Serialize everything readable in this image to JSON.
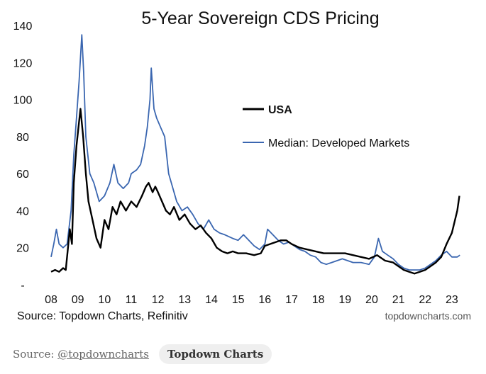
{
  "chart_data": {
    "type": "line",
    "title": "5-Year Sovereign CDS Pricing",
    "xlabel": "",
    "ylabel": "",
    "x_range": [
      2008.0,
      2023.4
    ],
    "x_ticks": [
      2008,
      2009,
      2010,
      2011,
      2012,
      2013,
      2014,
      2015,
      2016,
      2017,
      2018,
      2019,
      2020,
      2021,
      2022,
      2023
    ],
    "x_tick_labels": [
      "08",
      "09",
      "10",
      "11",
      "12",
      "13",
      "14",
      "15",
      "16",
      "17",
      "18",
      "19",
      "20",
      "21",
      "22",
      "23"
    ],
    "ylim": [
      0,
      140
    ],
    "y_ticks": [
      0,
      20,
      40,
      60,
      80,
      100,
      120,
      140
    ],
    "y_tick_labels": [
      "-",
      "20",
      "40",
      "60",
      "80",
      "100",
      "120",
      "140"
    ],
    "grid": false,
    "legend_position": "upper-center",
    "series": [
      {
        "name": "USA",
        "color": "#000000",
        "points": [
          [
            2008.0,
            7
          ],
          [
            2008.15,
            8
          ],
          [
            2008.3,
            7
          ],
          [
            2008.45,
            9
          ],
          [
            2008.55,
            8
          ],
          [
            2008.7,
            30
          ],
          [
            2008.78,
            22
          ],
          [
            2008.85,
            55
          ],
          [
            2008.95,
            75
          ],
          [
            2009.1,
            95
          ],
          [
            2009.2,
            80
          ],
          [
            2009.3,
            60
          ],
          [
            2009.4,
            45
          ],
          [
            2009.55,
            35
          ],
          [
            2009.7,
            25
          ],
          [
            2009.85,
            20
          ],
          [
            2010.0,
            35
          ],
          [
            2010.15,
            30
          ],
          [
            2010.3,
            42
          ],
          [
            2010.45,
            38
          ],
          [
            2010.6,
            45
          ],
          [
            2010.8,
            40
          ],
          [
            2011.0,
            45
          ],
          [
            2011.2,
            42
          ],
          [
            2011.4,
            48
          ],
          [
            2011.55,
            53
          ],
          [
            2011.65,
            55
          ],
          [
            2011.8,
            50
          ],
          [
            2011.9,
            53
          ],
          [
            2012.0,
            50
          ],
          [
            2012.15,
            45
          ],
          [
            2012.3,
            40
          ],
          [
            2012.45,
            38
          ],
          [
            2012.6,
            42
          ],
          [
            2012.8,
            35
          ],
          [
            2013.0,
            38
          ],
          [
            2013.2,
            33
          ],
          [
            2013.4,
            30
          ],
          [
            2013.6,
            32
          ],
          [
            2013.8,
            28
          ],
          [
            2014.0,
            25
          ],
          [
            2014.2,
            20
          ],
          [
            2014.4,
            18
          ],
          [
            2014.6,
            17
          ],
          [
            2014.8,
            18
          ],
          [
            2015.0,
            17
          ],
          [
            2015.3,
            17
          ],
          [
            2015.6,
            16
          ],
          [
            2015.85,
            17
          ],
          [
            2016.0,
            21
          ],
          [
            2016.2,
            22
          ],
          [
            2016.4,
            23
          ],
          [
            2016.6,
            24
          ],
          [
            2016.8,
            24
          ],
          [
            2017.0,
            22
          ],
          [
            2017.3,
            20
          ],
          [
            2017.6,
            19
          ],
          [
            2017.9,
            18
          ],
          [
            2018.2,
            17
          ],
          [
            2018.5,
            17
          ],
          [
            2018.8,
            17
          ],
          [
            2019.0,
            17
          ],
          [
            2019.3,
            16
          ],
          [
            2019.6,
            15
          ],
          [
            2019.9,
            14
          ],
          [
            2020.2,
            16
          ],
          [
            2020.5,
            13
          ],
          [
            2020.8,
            12
          ],
          [
            2021.0,
            10
          ],
          [
            2021.2,
            8
          ],
          [
            2021.4,
            7
          ],
          [
            2021.6,
            6
          ],
          [
            2021.8,
            7
          ],
          [
            2022.0,
            8
          ],
          [
            2022.2,
            10
          ],
          [
            2022.4,
            12
          ],
          [
            2022.6,
            15
          ],
          [
            2022.8,
            22
          ],
          [
            2023.0,
            28
          ],
          [
            2023.2,
            40
          ],
          [
            2023.28,
            48
          ]
        ]
      },
      {
        "name": "Median: Developed Markets",
        "color": "#3a66b0",
        "points": [
          [
            2008.0,
            15
          ],
          [
            2008.1,
            22
          ],
          [
            2008.2,
            30
          ],
          [
            2008.3,
            22
          ],
          [
            2008.45,
            20
          ],
          [
            2008.6,
            22
          ],
          [
            2008.75,
            40
          ],
          [
            2008.85,
            70
          ],
          [
            2008.95,
            90
          ],
          [
            2009.05,
            110
          ],
          [
            2009.15,
            135
          ],
          [
            2009.22,
            115
          ],
          [
            2009.3,
            80
          ],
          [
            2009.45,
            60
          ],
          [
            2009.6,
            55
          ],
          [
            2009.8,
            45
          ],
          [
            2010.0,
            48
          ],
          [
            2010.2,
            55
          ],
          [
            2010.35,
            65
          ],
          [
            2010.5,
            55
          ],
          [
            2010.7,
            52
          ],
          [
            2010.9,
            55
          ],
          [
            2011.0,
            60
          ],
          [
            2011.2,
            62
          ],
          [
            2011.35,
            65
          ],
          [
            2011.5,
            75
          ],
          [
            2011.6,
            85
          ],
          [
            2011.7,
            100
          ],
          [
            2011.75,
            117
          ],
          [
            2011.85,
            95
          ],
          [
            2011.95,
            90
          ],
          [
            2012.1,
            85
          ],
          [
            2012.25,
            80
          ],
          [
            2012.4,
            60
          ],
          [
            2012.5,
            55
          ],
          [
            2012.7,
            45
          ],
          [
            2012.9,
            40
          ],
          [
            2013.1,
            42
          ],
          [
            2013.3,
            38
          ],
          [
            2013.5,
            33
          ],
          [
            2013.7,
            30
          ],
          [
            2013.9,
            35
          ],
          [
            2014.1,
            30
          ],
          [
            2014.3,
            28
          ],
          [
            2014.5,
            27
          ],
          [
            2014.8,
            25
          ],
          [
            2015.0,
            24
          ],
          [
            2015.2,
            27
          ],
          [
            2015.4,
            24
          ],
          [
            2015.6,
            21
          ],
          [
            2015.8,
            19
          ],
          [
            2016.0,
            22
          ],
          [
            2016.1,
            30
          ],
          [
            2016.3,
            27
          ],
          [
            2016.5,
            24
          ],
          [
            2016.7,
            22
          ],
          [
            2016.9,
            23
          ],
          [
            2017.1,
            21
          ],
          [
            2017.3,
            19
          ],
          [
            2017.5,
            18
          ],
          [
            2017.7,
            16
          ],
          [
            2017.9,
            15
          ],
          [
            2018.1,
            12
          ],
          [
            2018.3,
            11
          ],
          [
            2018.5,
            12
          ],
          [
            2018.7,
            13
          ],
          [
            2018.9,
            14
          ],
          [
            2019.1,
            13
          ],
          [
            2019.3,
            12
          ],
          [
            2019.6,
            12
          ],
          [
            2019.9,
            11
          ],
          [
            2020.1,
            15
          ],
          [
            2020.25,
            25
          ],
          [
            2020.4,
            18
          ],
          [
            2020.6,
            16
          ],
          [
            2020.8,
            14
          ],
          [
            2021.0,
            11
          ],
          [
            2021.2,
            9
          ],
          [
            2021.4,
            8
          ],
          [
            2021.6,
            8
          ],
          [
            2021.8,
            8
          ],
          [
            2022.0,
            9
          ],
          [
            2022.2,
            11
          ],
          [
            2022.4,
            13
          ],
          [
            2022.6,
            16
          ],
          [
            2022.8,
            18
          ],
          [
            2023.0,
            15
          ],
          [
            2023.2,
            15
          ],
          [
            2023.3,
            16
          ]
        ]
      }
    ],
    "source_label": "Source: Topdown Charts, Refinitiv",
    "brand_label": "topdowncharts.com"
  },
  "footer": {
    "source_prefix": "Source: ",
    "source_handle": "@topdowncharts",
    "badge": "Topdown Charts"
  }
}
